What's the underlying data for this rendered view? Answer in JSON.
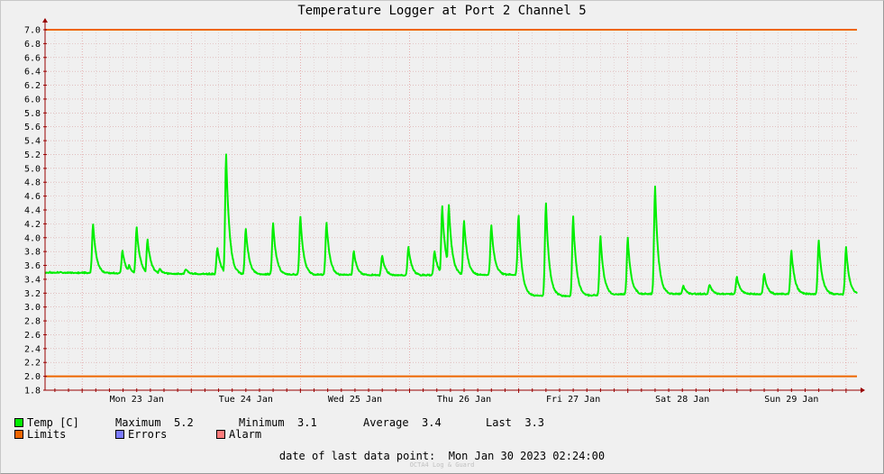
{
  "title": "Temperature Logger at Port 2 Channel 5",
  "chart_data": {
    "type": "line",
    "title": "Temperature Logger at Port 2 Channel 5",
    "ylim": [
      1.8,
      7.0
    ],
    "y_ticks": [
      "7.0",
      "6.8",
      "6.6",
      "6.4",
      "6.2",
      "6.0",
      "5.8",
      "5.6",
      "5.4",
      "5.2",
      "5.0",
      "4.8",
      "4.6",
      "4.4",
      "4.2",
      "4.0",
      "3.8",
      "3.6",
      "3.4",
      "3.2",
      "3.0",
      "2.8",
      "2.6",
      "2.4",
      "2.2",
      "2.0",
      "1.8"
    ],
    "x_tick_labels": [
      "Mon 23 Jan",
      "Tue 24 Jan",
      "Wed 25 Jan",
      "Thu 26 Jan",
      "Fri 27 Jan",
      "Sat 28 Jan",
      "Sun 29 Jan"
    ],
    "x_unit": "days since Mon 23 Jan 00:00",
    "xlim": [
      -0.34,
      7.1
    ],
    "grid": true,
    "limits": [
      2.0,
      7.0
    ],
    "series": [
      {
        "name": "Temp [C]",
        "color": "#00ee00",
        "baseline": [
          [
            -0.34,
            3.49
          ],
          [
            1.0,
            3.47
          ],
          [
            2.0,
            3.46
          ],
          [
            2.99,
            3.45
          ],
          [
            3.98,
            3.46
          ],
          [
            4.0,
            3.16
          ],
          [
            4.5,
            3.15
          ],
          [
            5.0,
            3.18
          ],
          [
            6.0,
            3.18
          ],
          [
            7.1,
            3.18
          ]
        ],
        "spikes": [
          [
            0.1,
            4.2
          ],
          [
            0.37,
            3.81
          ],
          [
            0.43,
            3.6
          ],
          [
            0.5,
            4.15
          ],
          [
            0.6,
            3.97
          ],
          [
            0.71,
            3.55
          ],
          [
            0.95,
            3.55
          ],
          [
            1.24,
            3.85
          ],
          [
            1.32,
            5.2
          ],
          [
            1.38,
            3.6
          ],
          [
            1.5,
            4.13
          ],
          [
            1.75,
            4.21
          ],
          [
            2.0,
            4.3
          ],
          [
            2.24,
            4.21
          ],
          [
            2.49,
            3.8
          ],
          [
            2.75,
            3.74
          ],
          [
            2.99,
            3.86
          ],
          [
            3.23,
            3.8
          ],
          [
            3.3,
            4.45
          ],
          [
            3.36,
            4.48
          ],
          [
            3.5,
            4.25
          ],
          [
            3.75,
            4.18
          ],
          [
            4.0,
            4.31
          ],
          [
            4.25,
            4.5
          ],
          [
            4.5,
            4.3
          ],
          [
            4.75,
            4.03
          ],
          [
            5.0,
            3.99
          ],
          [
            5.25,
            4.73
          ],
          [
            5.51,
            3.3
          ],
          [
            5.75,
            3.32
          ],
          [
            6.0,
            3.43
          ],
          [
            6.25,
            3.48
          ],
          [
            6.5,
            3.81
          ],
          [
            6.75,
            3.96
          ],
          [
            7.0,
            3.86
          ]
        ]
      }
    ],
    "stats": {
      "maximum": "5.2",
      "minimum": "3.1",
      "average": "3.4",
      "last": "3.3"
    }
  },
  "legend": {
    "temp": "Temp [C]",
    "maximum": "Maximum  5.2",
    "minimum": "Minimum  3.1",
    "average": "Average  3.4",
    "last": "Last  3.3",
    "limits": "Limits",
    "errors": "Errors",
    "alarm": "Alarm"
  },
  "colors": {
    "temp": "#00ee00",
    "limits": "#ee6600",
    "errors": "#7b7bff",
    "alarm": "#ff7b7b",
    "axis": "#990000"
  },
  "footer": "date of last data point:  Mon Jan 30 2023 02:24:00",
  "watermark": "OCTA4 Log & Guard"
}
